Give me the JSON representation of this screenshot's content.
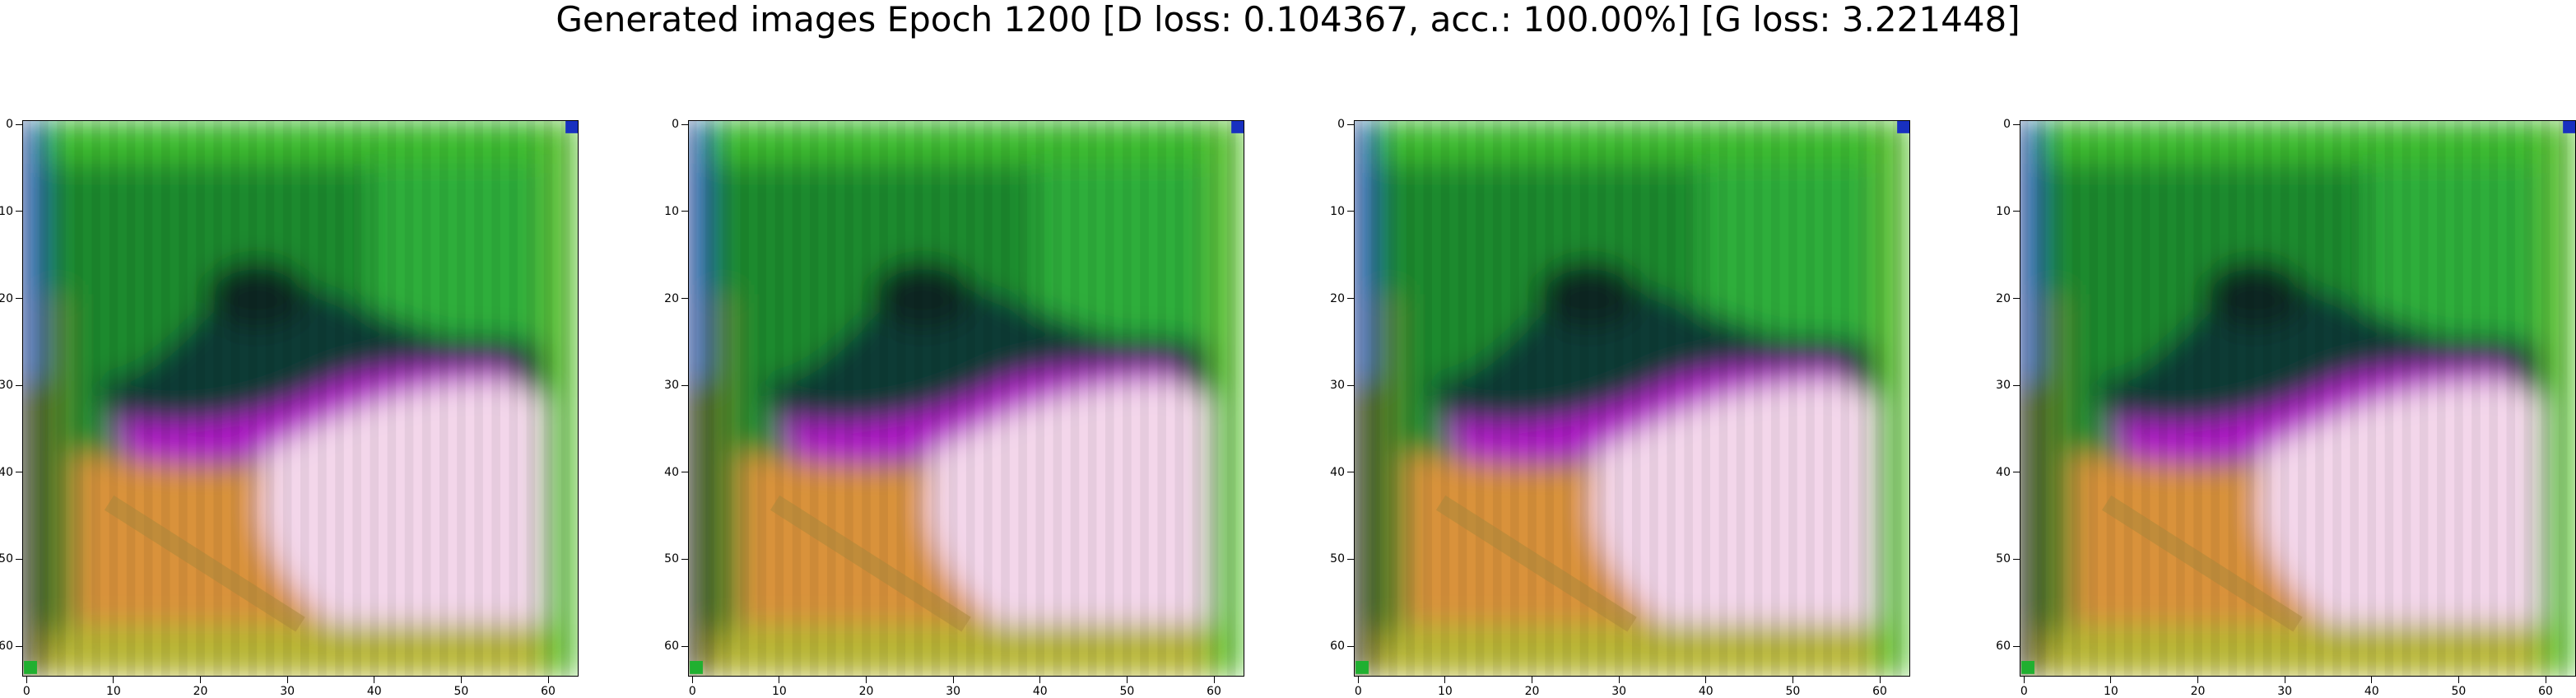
{
  "title": "Generated images Epoch 1200 [D loss: 0.104367, acc.: 100.00%] [G loss: 3.221448]",
  "chart_data": {
    "type": "heatmap",
    "description_of_panels": "four identical generated RGB images (64x64 px), displayed with imshow",
    "panels": [
      {
        "id": "image-1",
        "xlim": [
          -0.5,
          63.5
        ],
        "ylim": [
          63.5,
          -0.5
        ]
      },
      {
        "id": "image-2",
        "xlim": [
          -0.5,
          63.5
        ],
        "ylim": [
          63.5,
          -0.5
        ]
      },
      {
        "id": "image-3",
        "xlim": [
          -0.5,
          63.5
        ],
        "ylim": [
          63.5,
          -0.5
        ]
      },
      {
        "id": "image-4",
        "xlim": [
          -0.5,
          63.5
        ],
        "ylim": [
          63.5,
          -0.5
        ]
      }
    ],
    "x_ticks": [
      0,
      10,
      20,
      30,
      40,
      50,
      60
    ],
    "y_ticks": [
      0,
      10,
      20,
      30,
      40,
      50,
      60
    ],
    "grid": false,
    "colors": {
      "top_region": "#1f8a2e",
      "dark_band": "#0f3a34",
      "magenta_band": "#b010c8",
      "light_pink": "#f3d6ea",
      "orange_region": "#d9923a",
      "yellow_bottom": "#b7b636",
      "left_edge_blue": "#1a3fb0"
    }
  }
}
